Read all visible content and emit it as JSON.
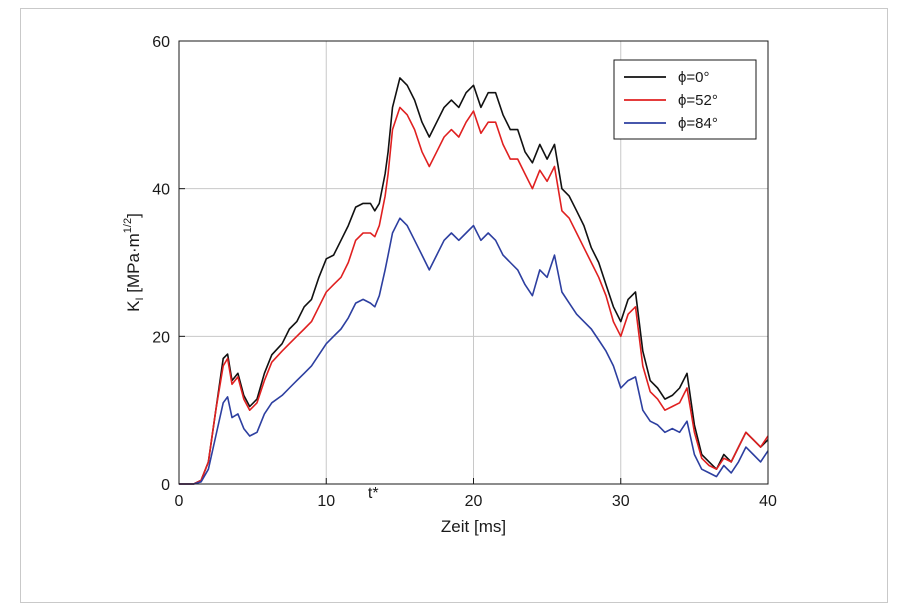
{
  "chart_data": {
    "type": "line",
    "xlabel": "Zeit [ms]",
    "ylabel": {
      "main": "K",
      "sub": "I",
      "unit_pre": " [MPa·m",
      "sup": "1/2",
      "unit_post": "]"
    },
    "xlim": [
      0,
      40
    ],
    "ylim": [
      0,
      60
    ],
    "x_ticks": [
      0,
      10,
      20,
      30,
      40
    ],
    "y_ticks": [
      0,
      20,
      40,
      60
    ],
    "x_tick_labels": [
      "0",
      "10",
      "20",
      "30",
      "40"
    ],
    "y_tick_labels": [
      "0",
      "20",
      "40",
      "60"
    ],
    "annotation": {
      "text": "t*",
      "x": 13.1
    },
    "grid": true,
    "legend_position": "top-right",
    "colors": {
      "axis": "#1a1a1a",
      "grid": "#c8c8c8",
      "frame": "#c9c9c9"
    },
    "series": [
      {
        "name": "ϕ=0°",
        "color": "#111111",
        "points": [
          [
            0,
            0
          ],
          [
            1,
            0
          ],
          [
            1.5,
            0.5
          ],
          [
            2,
            3
          ],
          [
            2.5,
            10
          ],
          [
            3,
            17
          ],
          [
            3.3,
            17.6
          ],
          [
            3.6,
            14
          ],
          [
            4,
            15
          ],
          [
            4.4,
            12
          ],
          [
            4.8,
            10.5
          ],
          [
            5.3,
            11.5
          ],
          [
            5.8,
            15
          ],
          [
            6.3,
            17.5
          ],
          [
            7,
            19
          ],
          [
            7.5,
            21
          ],
          [
            8,
            22
          ],
          [
            8.5,
            24
          ],
          [
            9,
            25
          ],
          [
            9.5,
            28
          ],
          [
            10,
            30.5
          ],
          [
            10.5,
            31
          ],
          [
            11,
            33
          ],
          [
            11.5,
            35
          ],
          [
            12,
            37.5
          ],
          [
            12.5,
            38
          ],
          [
            13,
            38
          ],
          [
            13.3,
            37
          ],
          [
            13.6,
            38
          ],
          [
            14,
            42
          ],
          [
            14.2,
            45
          ],
          [
            14.5,
            51
          ],
          [
            15,
            55
          ],
          [
            15.5,
            54
          ],
          [
            16,
            52
          ],
          [
            16.5,
            49
          ],
          [
            17,
            47
          ],
          [
            17.5,
            49
          ],
          [
            18,
            51
          ],
          [
            18.5,
            52
          ],
          [
            19,
            51
          ],
          [
            19.5,
            53
          ],
          [
            20,
            54
          ],
          [
            20.5,
            51
          ],
          [
            21,
            53
          ],
          [
            21.5,
            53
          ],
          [
            22,
            50
          ],
          [
            22.5,
            48
          ],
          [
            23,
            48
          ],
          [
            23.5,
            45
          ],
          [
            24,
            43.5
          ],
          [
            24.5,
            46
          ],
          [
            25,
            44
          ],
          [
            25.5,
            46
          ],
          [
            26,
            40
          ],
          [
            26.5,
            39
          ],
          [
            27,
            37
          ],
          [
            27.5,
            35
          ],
          [
            28,
            32
          ],
          [
            28.5,
            30
          ],
          [
            29,
            27
          ],
          [
            29.5,
            24
          ],
          [
            30,
            22
          ],
          [
            30.5,
            25
          ],
          [
            31,
            26
          ],
          [
            31.5,
            18
          ],
          [
            32,
            14
          ],
          [
            32.5,
            13
          ],
          [
            33,
            11.5
          ],
          [
            33.5,
            12
          ],
          [
            34,
            13
          ],
          [
            34.5,
            15
          ],
          [
            35,
            8
          ],
          [
            35.5,
            4
          ],
          [
            36,
            3
          ],
          [
            36.5,
            2
          ],
          [
            37,
            4
          ],
          [
            37.5,
            3
          ],
          [
            38,
            5
          ],
          [
            38.5,
            7
          ],
          [
            39,
            6
          ],
          [
            39.5,
            5
          ],
          [
            40,
            6
          ]
        ]
      },
      {
        "name": "ϕ=52°",
        "color": "#e02020",
        "points": [
          [
            0,
            0
          ],
          [
            1,
            0
          ],
          [
            1.5,
            0.5
          ],
          [
            2,
            3
          ],
          [
            2.5,
            10
          ],
          [
            3,
            16
          ],
          [
            3.3,
            17
          ],
          [
            3.6,
            13.5
          ],
          [
            4,
            14.5
          ],
          [
            4.4,
            11.5
          ],
          [
            4.8,
            10
          ],
          [
            5.3,
            11
          ],
          [
            5.8,
            14
          ],
          [
            6.3,
            16.5
          ],
          [
            7,
            18
          ],
          [
            7.5,
            19
          ],
          [
            8,
            20
          ],
          [
            8.5,
            21
          ],
          [
            9,
            22
          ],
          [
            9.5,
            24
          ],
          [
            10,
            26
          ],
          [
            10.5,
            27
          ],
          [
            11,
            28
          ],
          [
            11.5,
            30
          ],
          [
            12,
            33
          ],
          [
            12.5,
            34
          ],
          [
            13,
            34
          ],
          [
            13.3,
            33.5
          ],
          [
            13.6,
            35
          ],
          [
            14,
            39
          ],
          [
            14.2,
            42
          ],
          [
            14.5,
            48
          ],
          [
            15,
            51
          ],
          [
            15.5,
            50
          ],
          [
            16,
            48
          ],
          [
            16.5,
            45
          ],
          [
            17,
            43
          ],
          [
            17.5,
            45
          ],
          [
            18,
            47
          ],
          [
            18.5,
            48
          ],
          [
            19,
            47
          ],
          [
            19.5,
            49
          ],
          [
            20,
            50.5
          ],
          [
            20.5,
            47.5
          ],
          [
            21,
            49
          ],
          [
            21.5,
            49
          ],
          [
            22,
            46
          ],
          [
            22.5,
            44
          ],
          [
            23,
            44
          ],
          [
            23.5,
            42
          ],
          [
            24,
            40
          ],
          [
            24.5,
            42.5
          ],
          [
            25,
            41
          ],
          [
            25.5,
            43
          ],
          [
            26,
            37
          ],
          [
            26.5,
            36
          ],
          [
            27,
            34
          ],
          [
            27.5,
            32
          ],
          [
            28,
            30
          ],
          [
            28.5,
            28
          ],
          [
            29,
            25.5
          ],
          [
            29.5,
            22
          ],
          [
            30,
            20
          ],
          [
            30.5,
            23
          ],
          [
            31,
            24
          ],
          [
            31.5,
            16
          ],
          [
            32,
            12.5
          ],
          [
            32.5,
            11.5
          ],
          [
            33,
            10
          ],
          [
            33.5,
            10.5
          ],
          [
            34,
            11
          ],
          [
            34.5,
            13
          ],
          [
            35,
            7
          ],
          [
            35.5,
            3.5
          ],
          [
            36,
            2.5
          ],
          [
            36.5,
            2
          ],
          [
            37,
            3.5
          ],
          [
            37.5,
            3
          ],
          [
            38,
            5
          ],
          [
            38.5,
            7
          ],
          [
            39,
            6
          ],
          [
            39.5,
            5
          ],
          [
            40,
            6.5
          ]
        ]
      },
      {
        "name": "ϕ=84°",
        "color": "#2d3fa0",
        "points": [
          [
            0,
            0
          ],
          [
            1,
            0
          ],
          [
            1.5,
            0.3
          ],
          [
            2,
            2
          ],
          [
            2.5,
            6.5
          ],
          [
            3,
            11
          ],
          [
            3.3,
            11.8
          ],
          [
            3.6,
            9
          ],
          [
            4,
            9.5
          ],
          [
            4.4,
            7.5
          ],
          [
            4.8,
            6.5
          ],
          [
            5.3,
            7
          ],
          [
            5.8,
            9.5
          ],
          [
            6.3,
            11
          ],
          [
            7,
            12
          ],
          [
            7.5,
            13
          ],
          [
            8,
            14
          ],
          [
            8.5,
            15
          ],
          [
            9,
            16
          ],
          [
            9.5,
            17.5
          ],
          [
            10,
            19
          ],
          [
            10.5,
            20
          ],
          [
            11,
            21
          ],
          [
            11.5,
            22.5
          ],
          [
            12,
            24.5
          ],
          [
            12.5,
            25
          ],
          [
            13,
            24.5
          ],
          [
            13.3,
            24
          ],
          [
            13.6,
            25.5
          ],
          [
            14,
            29
          ],
          [
            14.2,
            31
          ],
          [
            14.5,
            34
          ],
          [
            15,
            36
          ],
          [
            15.5,
            35
          ],
          [
            16,
            33
          ],
          [
            16.5,
            31
          ],
          [
            17,
            29
          ],
          [
            17.5,
            31
          ],
          [
            18,
            33
          ],
          [
            18.5,
            34
          ],
          [
            19,
            33
          ],
          [
            19.5,
            34
          ],
          [
            20,
            35
          ],
          [
            20.5,
            33
          ],
          [
            21,
            34
          ],
          [
            21.5,
            33
          ],
          [
            22,
            31
          ],
          [
            22.5,
            30
          ],
          [
            23,
            29
          ],
          [
            23.5,
            27
          ],
          [
            24,
            25.5
          ],
          [
            24.5,
            29
          ],
          [
            25,
            28
          ],
          [
            25.5,
            31
          ],
          [
            26,
            26
          ],
          [
            26.5,
            24.5
          ],
          [
            27,
            23
          ],
          [
            27.5,
            22
          ],
          [
            28,
            21
          ],
          [
            28.5,
            19.5
          ],
          [
            29,
            18
          ],
          [
            29.5,
            16
          ],
          [
            30,
            13
          ],
          [
            30.5,
            14
          ],
          [
            31,
            14.5
          ],
          [
            31.5,
            10
          ],
          [
            32,
            8.5
          ],
          [
            32.5,
            8
          ],
          [
            33,
            7
          ],
          [
            33.5,
            7.5
          ],
          [
            34,
            7
          ],
          [
            34.5,
            8.5
          ],
          [
            35,
            4
          ],
          [
            35.5,
            2
          ],
          [
            36,
            1.5
          ],
          [
            36.5,
            1
          ],
          [
            37,
            2.5
          ],
          [
            37.5,
            1.5
          ],
          [
            38,
            3
          ],
          [
            38.5,
            5
          ],
          [
            39,
            4
          ],
          [
            39.5,
            3
          ],
          [
            40,
            4.5
          ]
        ]
      }
    ]
  }
}
